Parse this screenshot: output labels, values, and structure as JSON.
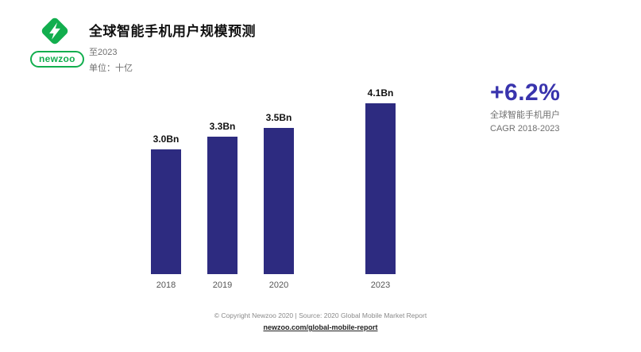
{
  "brand": {
    "logo_text": "newzoo",
    "logo_color": "#12ae4e"
  },
  "header": {
    "title": "全球智能手机用户规模预测",
    "subtitle": "至2023",
    "unit_label": "单位：十亿"
  },
  "chart_data": {
    "type": "bar",
    "categories": [
      "2018",
      "2019",
      "2020",
      "2023"
    ],
    "values": [
      3.0,
      3.3,
      3.5,
      4.1
    ],
    "value_labels": [
      "3.0Bn",
      "3.3Bn",
      "3.5Bn",
      "4.1Bn"
    ],
    "title": "全球智能手机用户规模预测",
    "xlabel": "",
    "ylabel": "单位：十亿",
    "ylim": [
      0,
      4.1
    ],
    "grid": false,
    "legend": false,
    "bar_color": "#2d2b80"
  },
  "highlight": {
    "value": "+6.2%",
    "color": "#3934ad",
    "line1": "全球智能手机用户",
    "line2": "CAGR 2018-2023"
  },
  "footer": {
    "copyright": "© Copyright Newzoo 2020 | Source: 2020 Global Mobile Market Report",
    "link": "newzoo.com/global-mobile-report"
  }
}
